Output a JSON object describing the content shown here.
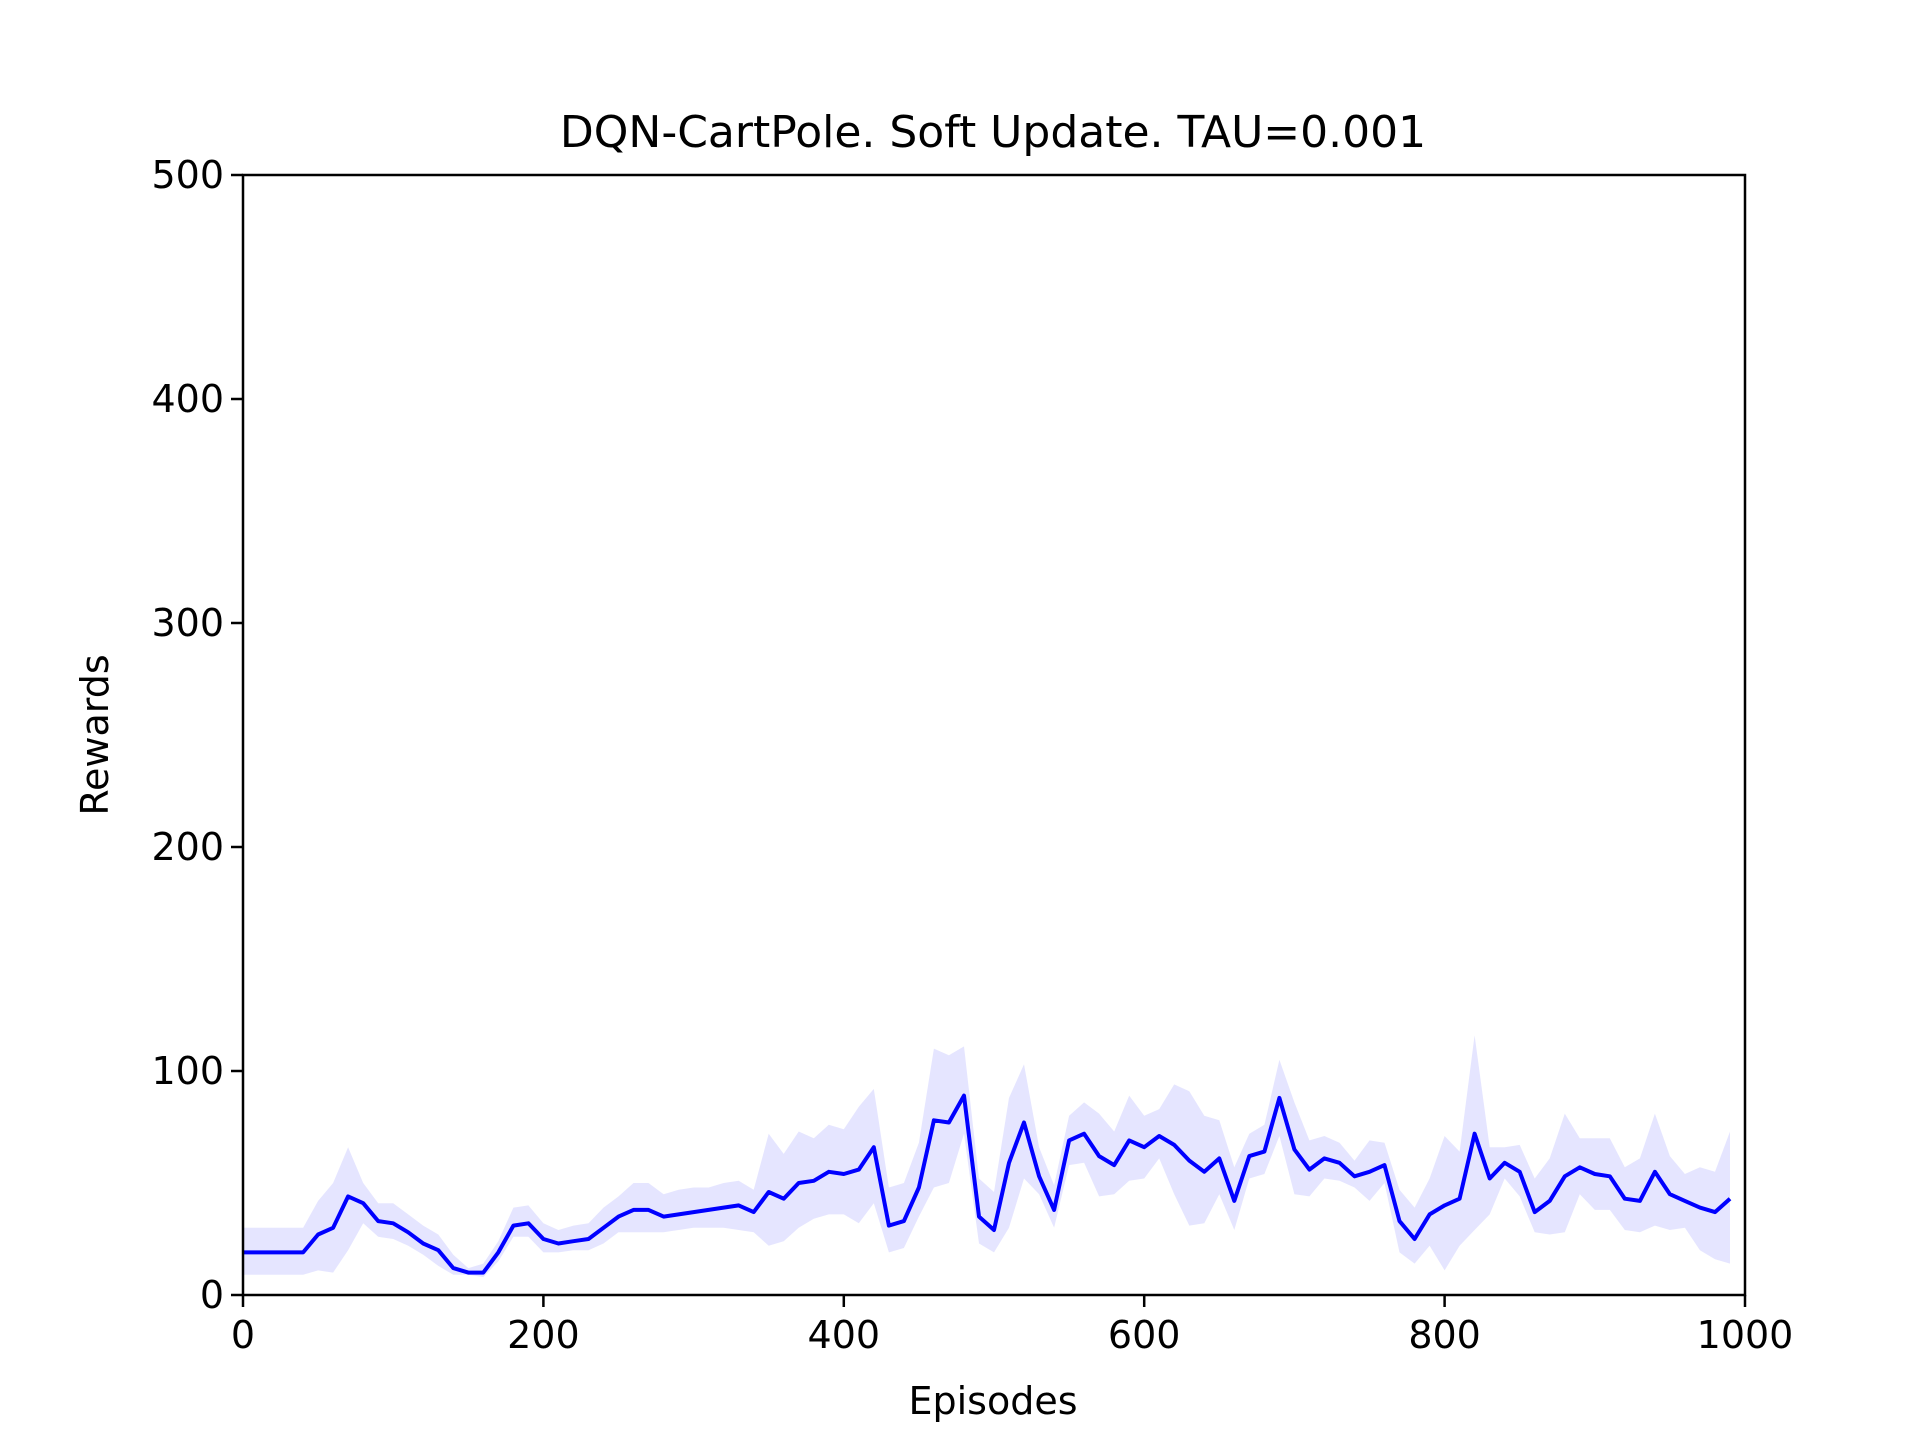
{
  "chart_data": {
    "type": "line",
    "title": "DQN-CartPole. Soft Update. TAU=0.001",
    "xlabel": "Episodes",
    "ylabel": "Rewards",
    "xlim": [
      0,
      1000
    ],
    "ylim": [
      0,
      500
    ],
    "x_ticks": [
      "0",
      "200",
      "400",
      "600",
      "800",
      "1000"
    ],
    "y_ticks": [
      "0",
      "100",
      "200",
      "300",
      "400",
      "500"
    ],
    "grid": false,
    "legend": false,
    "colors": {
      "line": "#0000ff",
      "band": "#0000ff",
      "band_opacity": 0.1,
      "axes": "#000000"
    },
    "series": [
      {
        "x": [
          0,
          10,
          20,
          30,
          40,
          50,
          60,
          70,
          80,
          90,
          100,
          110,
          120,
          130,
          140,
          150,
          160,
          170,
          180,
          190,
          200,
          210,
          220,
          230,
          240,
          250,
          260,
          270,
          280,
          290,
          300,
          310,
          320,
          330,
          340,
          350,
          360,
          370,
          380,
          390,
          400,
          410,
          420,
          430,
          440,
          450,
          460,
          470,
          480,
          490,
          500,
          510,
          520,
          530,
          540,
          550,
          560,
          570,
          580,
          590,
          600,
          610,
          620,
          630,
          640,
          650,
          660,
          670,
          680,
          690,
          700,
          710,
          720,
          730,
          740,
          750,
          760,
          770,
          780,
          790,
          800,
          810,
          820,
          830,
          840,
          850,
          860,
          870,
          880,
          890,
          900,
          910,
          920,
          930,
          940,
          950,
          960,
          970,
          980,
          990
        ],
        "y": [
          19,
          19,
          19,
          19,
          19,
          27,
          30,
          44,
          41,
          33,
          32,
          28,
          23,
          20,
          12,
          10,
          10,
          19,
          31,
          32,
          25,
          23,
          24,
          25,
          30,
          35,
          38,
          38,
          35,
          36,
          37,
          38,
          39,
          40,
          37,
          46,
          43,
          50,
          51,
          55,
          54,
          56,
          66,
          31,
          33,
          48,
          78,
          77,
          89,
          35,
          29,
          59,
          77,
          53,
          38,
          69,
          72,
          62,
          58,
          69,
          66,
          71,
          67,
          60,
          55,
          61,
          42,
          62,
          64,
          88,
          65,
          56,
          61,
          59,
          53,
          55,
          58,
          33,
          25,
          36,
          40,
          43,
          72,
          52,
          59,
          55,
          37,
          42,
          53,
          57,
          54,
          53,
          43,
          42,
          55,
          45,
          42,
          39,
          37,
          43
        ],
        "upper": [
          30,
          30,
          30,
          30,
          30,
          42,
          50,
          66,
          50,
          41,
          41,
          36,
          31,
          27,
          18,
          12,
          14,
          24,
          39,
          40,
          32,
          29,
          31,
          32,
          39,
          44,
          50,
          50,
          45,
          47,
          48,
          48,
          50,
          51,
          47,
          72,
          63,
          73,
          70,
          76,
          74,
          84,
          92,
          48,
          50,
          68,
          110,
          107,
          111,
          52,
          46,
          88,
          103,
          66,
          49,
          80,
          86,
          81,
          73,
          89,
          80,
          83,
          94,
          91,
          80,
          78,
          57,
          72,
          76,
          105,
          86,
          69,
          71,
          68,
          60,
          69,
          68,
          47,
          39,
          52,
          71,
          64,
          116,
          66,
          66,
          67,
          52,
          61,
          81,
          70,
          70,
          70,
          57,
          61,
          81,
          62,
          54,
          57,
          55,
          73
        ],
        "lower": [
          9,
          9,
          9,
          9,
          9,
          11,
          10,
          20,
          32,
          26,
          25,
          22,
          18,
          13,
          9,
          9,
          8,
          15,
          26,
          26,
          19,
          19,
          20,
          20,
          23,
          28,
          28,
          28,
          28,
          29,
          30,
          30,
          30,
          29,
          28,
          22,
          24,
          30,
          34,
          36,
          36,
          32,
          41,
          19,
          21,
          35,
          48,
          50,
          72,
          23,
          19,
          30,
          52,
          45,
          30,
          58,
          59,
          44,
          45,
          51,
          52,
          61,
          45,
          31,
          32,
          45,
          29,
          52,
          54,
          71,
          45,
          44,
          52,
          51,
          48,
          42,
          50,
          19,
          14,
          22,
          11,
          22,
          29,
          36,
          52,
          44,
          28,
          27,
          28,
          45,
          38,
          38,
          29,
          28,
          31,
          29,
          30,
          20,
          16,
          14
        ]
      }
    ]
  }
}
